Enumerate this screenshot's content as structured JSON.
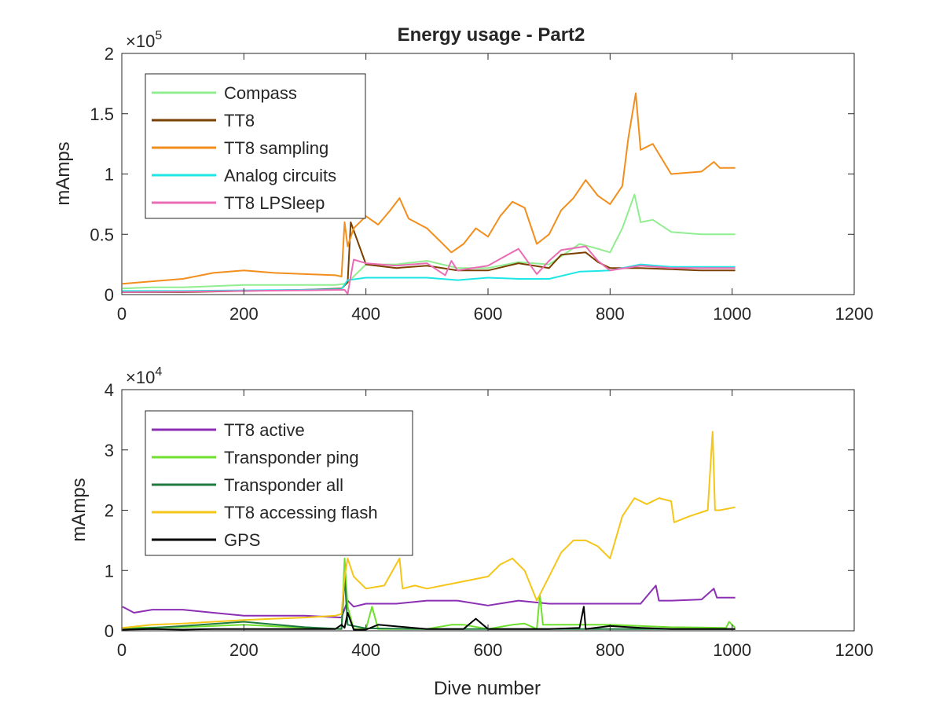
{
  "title": "Energy usage - Part2",
  "chart_data": [
    {
      "type": "line",
      "title": "Energy usage - Part2",
      "xlabel": "",
      "ylabel": "mAmps",
      "xlim": [
        0,
        1200
      ],
      "ylim": [
        0,
        200000
      ],
      "x_ticks": [
        0,
        200,
        400,
        600,
        800,
        1000,
        1200
      ],
      "y_ticks": [
        0,
        50000,
        100000,
        150000,
        200000
      ],
      "y_tick_labels": [
        "0",
        "0.5",
        "1",
        "1.5",
        "2"
      ],
      "y_multiplier_base": "×10",
      "y_multiplier_exp": "5",
      "grid": false,
      "legend_position": "top-left",
      "series": [
        {
          "name": "Compass",
          "color": "#90ee90",
          "x": [
            1,
            50,
            100,
            150,
            200,
            250,
            300,
            350,
            365,
            370,
            400,
            450,
            500,
            550,
            600,
            650,
            700,
            750,
            780,
            800,
            820,
            840,
            850,
            870,
            900,
            950,
            1005
          ],
          "y": [
            5000,
            6000,
            6000,
            7000,
            8000,
            8000,
            8000,
            8000,
            9000,
            10000,
            25000,
            25000,
            28000,
            22000,
            22000,
            27000,
            25000,
            42000,
            38000,
            35000,
            55000,
            83000,
            60000,
            62000,
            52000,
            50000,
            50000
          ]
        },
        {
          "name": "TT8",
          "color": "#7b3f00",
          "x": [
            1,
            100,
            200,
            300,
            360,
            370,
            375,
            400,
            450,
            500,
            550,
            600,
            650,
            700,
            720,
            760,
            780,
            800,
            850,
            900,
            950,
            1005
          ],
          "y": [
            2000,
            2000,
            3000,
            4000,
            5000,
            10000,
            60000,
            25000,
            22000,
            24000,
            20000,
            20000,
            26000,
            22000,
            33000,
            35000,
            27000,
            22000,
            22000,
            21000,
            20000,
            20000
          ]
        },
        {
          "name": "TT8 sampling",
          "color": "#f28e1c",
          "x": [
            1,
            50,
            100,
            150,
            200,
            250,
            300,
            350,
            360,
            365,
            370,
            380,
            400,
            420,
            440,
            455,
            470,
            500,
            520,
            540,
            560,
            580,
            600,
            620,
            640,
            660,
            680,
            700,
            720,
            740,
            760,
            780,
            800,
            820,
            830,
            842,
            850,
            870,
            900,
            950,
            970,
            980,
            1005
          ],
          "y": [
            9000,
            11000,
            13000,
            18000,
            20000,
            18000,
            17000,
            16000,
            15000,
            60000,
            40000,
            55000,
            65000,
            58000,
            70000,
            80000,
            63000,
            55000,
            45000,
            35000,
            42000,
            55000,
            48000,
            65000,
            77000,
            72000,
            42000,
            50000,
            70000,
            80000,
            95000,
            82000,
            75000,
            90000,
            130000,
            167000,
            120000,
            125000,
            100000,
            102000,
            110000,
            105000,
            105000
          ]
        },
        {
          "name": "Analog circuits",
          "color": "#1ee6e6",
          "x": [
            1,
            100,
            200,
            300,
            360,
            370,
            400,
            450,
            500,
            550,
            600,
            650,
            700,
            750,
            800,
            850,
            900,
            950,
            1005
          ],
          "y": [
            3000,
            3000,
            3500,
            4000,
            4500,
            12000,
            14000,
            14000,
            14000,
            12000,
            14000,
            13000,
            13000,
            19000,
            20000,
            25000,
            23000,
            23000,
            23000
          ]
        },
        {
          "name": "TT8 LPSleep",
          "color": "#ea6cb4",
          "x": [
            1,
            100,
            200,
            300,
            365,
            370,
            380,
            400,
            450,
            500,
            530,
            540,
            550,
            600,
            650,
            680,
            700,
            720,
            760,
            780,
            800,
            850,
            900,
            950,
            1005
          ],
          "y": [
            2000,
            2500,
            3000,
            3500,
            4000,
            500,
            29000,
            26000,
            24000,
            26000,
            16000,
            28000,
            20000,
            24000,
            38000,
            17000,
            28000,
            37000,
            40000,
            28000,
            20000,
            24000,
            22000,
            22000,
            22000
          ]
        }
      ]
    },
    {
      "type": "line",
      "title": "",
      "xlabel": "Dive number",
      "ylabel": "mAmps",
      "xlim": [
        0,
        1200
      ],
      "ylim": [
        0,
        40000
      ],
      "x_ticks": [
        0,
        200,
        400,
        600,
        800,
        1000,
        1200
      ],
      "y_ticks": [
        0,
        10000,
        20000,
        30000,
        40000
      ],
      "y_tick_labels": [
        "0",
        "1",
        "2",
        "3",
        "4"
      ],
      "y_multiplier_base": "×10",
      "y_multiplier_exp": "4",
      "grid": false,
      "legend_position": "top-left",
      "series": [
        {
          "name": "TT8 active",
          "color": "#8b2fb4",
          "x": [
            1,
            20,
            50,
            100,
            150,
            200,
            250,
            300,
            360,
            370,
            380,
            400,
            450,
            500,
            550,
            600,
            650,
            700,
            750,
            800,
            850,
            875,
            880,
            900,
            950,
            970,
            975,
            1005
          ],
          "y": [
            4000,
            3000,
            3500,
            3500,
            3000,
            2500,
            2500,
            2500,
            2200,
            5000,
            4000,
            4500,
            4500,
            5000,
            5000,
            4200,
            5000,
            4500,
            4500,
            4500,
            4500,
            7500,
            5000,
            5000,
            5200,
            7000,
            5500,
            5500
          ]
        },
        {
          "name": "Transponder ping",
          "color": "#6fe02d",
          "x": [
            1,
            100,
            200,
            300,
            360,
            365,
            370,
            380,
            400,
            410,
            420,
            500,
            540,
            560,
            600,
            640,
            660,
            680,
            685,
            690,
            700,
            800,
            900,
            990,
            995,
            1005
          ],
          "y": [
            500,
            600,
            1000,
            500,
            300,
            12000,
            4000,
            300,
            300,
            4000,
            300,
            300,
            1000,
            1000,
            300,
            1000,
            1200,
            300,
            6000,
            1000,
            1000,
            1000,
            600,
            500,
            1500,
            500
          ]
        },
        {
          "name": "Transponder all",
          "color": "#1f7a3d",
          "x": [
            1,
            100,
            200,
            300,
            360,
            365,
            370,
            400,
            500,
            600,
            700,
            800,
            900,
            1005
          ],
          "y": [
            200,
            800,
            1500,
            600,
            300,
            9000,
            1000,
            400,
            300,
            300,
            300,
            300,
            300,
            300
          ]
        },
        {
          "name": "TT8 accessing flash",
          "color": "#f5c518",
          "x": [
            1,
            50,
            100,
            150,
            200,
            250,
            300,
            350,
            360,
            365,
            370,
            380,
            400,
            430,
            455,
            460,
            480,
            500,
            550,
            600,
            620,
            640,
            660,
            680,
            700,
            720,
            740,
            760,
            780,
            800,
            820,
            840,
            860,
            880,
            900,
            905,
            930,
            960,
            968,
            972,
            980,
            1005
          ],
          "y": [
            500,
            1000,
            1200,
            1500,
            1800,
            2000,
            2200,
            2500,
            2800,
            9000,
            12000,
            9000,
            7000,
            7500,
            12000,
            7000,
            7500,
            7000,
            8000,
            9000,
            11000,
            12000,
            10000,
            5000,
            9000,
            13000,
            15000,
            15000,
            14000,
            12000,
            19000,
            22000,
            21000,
            22000,
            21500,
            18000,
            19000,
            20000,
            33000,
            20000,
            20000,
            20500
          ]
        },
        {
          "name": "GPS",
          "color": "#000000",
          "x": [
            1,
            50,
            100,
            150,
            200,
            250,
            300,
            350,
            360,
            365,
            370,
            380,
            400,
            420,
            500,
            560,
            580,
            600,
            650,
            700,
            750,
            757,
            760,
            800,
            850,
            900,
            950,
            1005
          ],
          "y": [
            200,
            300,
            200,
            300,
            300,
            300,
            300,
            300,
            1000,
            500,
            3000,
            200,
            200,
            1000,
            300,
            300,
            2000,
            300,
            300,
            300,
            500,
            4000,
            300,
            800,
            500,
            300,
            300,
            300
          ]
        }
      ]
    }
  ]
}
